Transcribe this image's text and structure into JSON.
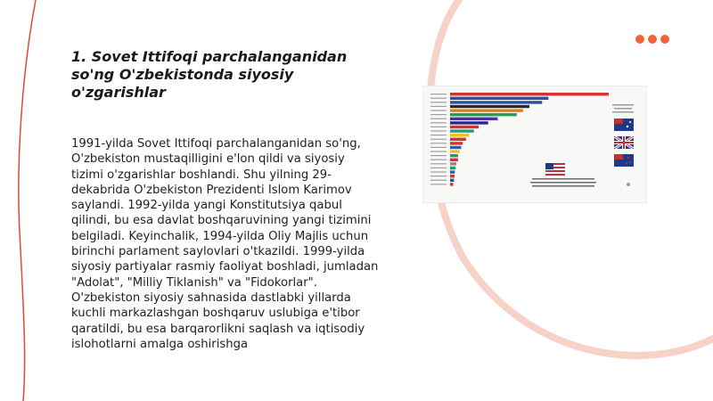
{
  "slide": {
    "title": "1. Sovet Ittifoqi parchalanganidan so'ng O'zbekistonda siyosiy o'zgarishlar",
    "body": "1991-yilda Sovet Ittifoqi parchalanganidan so'ng, O'zbekiston mustaqilligini e'lon qildi va siyosiy tizimi o'zgarishlar boshlandi. Shu yilning 29-dekabrida O'zbekiston Prezidenti Islom Karimov saylandi. 1992-yilda yangi Konstitutsiya qabul qilindi, bu esa davlat boshqaruvining yangi tizimini belgiladi. Keyinchalik, 1994-yilda Oliy Majlis uchun birinchi parlament saylovlari o'tkazildi. 1999-yilda siyosiy partiyalar rasmiy faoliyat boshladi, jumladan \"Adolat\", \"Milliy Tiklanish\" va \"Fidokorlar\". O'zbekiston siyosiy sahnasida dastlabki yillarda kuchli markazlashgan boshqaruv uslubiga e'tibor qaratildi, bu esa barqarorlikni saqlash va iqtisodiy islohotlarni amalga oshirishga"
  },
  "colors": {
    "accent": "#f0643c",
    "arc": "#f7d2c6",
    "text": "#1f1f1f"
  },
  "icons": {
    "menu_dots": "three-dots-icon"
  },
  "image": {
    "description_name": "bar-chart-race-image",
    "bar_fractions": [
      1.0,
      0.62,
      0.58,
      0.5,
      0.46,
      0.42,
      0.3,
      0.24,
      0.18,
      0.15,
      0.12,
      0.1,
      0.08,
      0.07,
      0.06,
      0.05,
      0.05,
      0.04,
      0.035,
      0.03,
      0.028,
      0.025,
      0.02
    ],
    "bar_colors": [
      "#d93030",
      "#3050a0",
      "#3050a0",
      "#2a2a2a",
      "#d98020",
      "#20a050",
      "#5030a0",
      "#2a2a8a",
      "#d93030",
      "#20a080",
      "#f0c020",
      "#d93030",
      "#d93030",
      "#2060c0",
      "#f0c020",
      "#20a050",
      "#d93030",
      "#8a8a8a",
      "#20a050",
      "#2060c0",
      "#d93030",
      "#3050a0",
      "#d93030"
    ]
  }
}
